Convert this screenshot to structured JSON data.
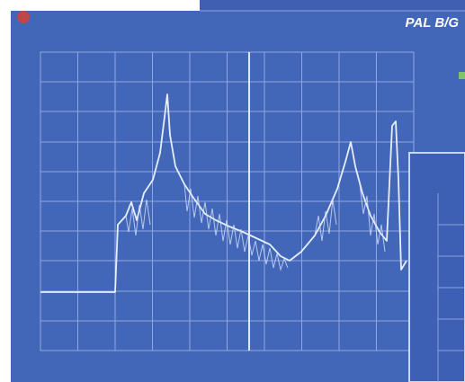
{
  "label": "PAL B/G"
}
